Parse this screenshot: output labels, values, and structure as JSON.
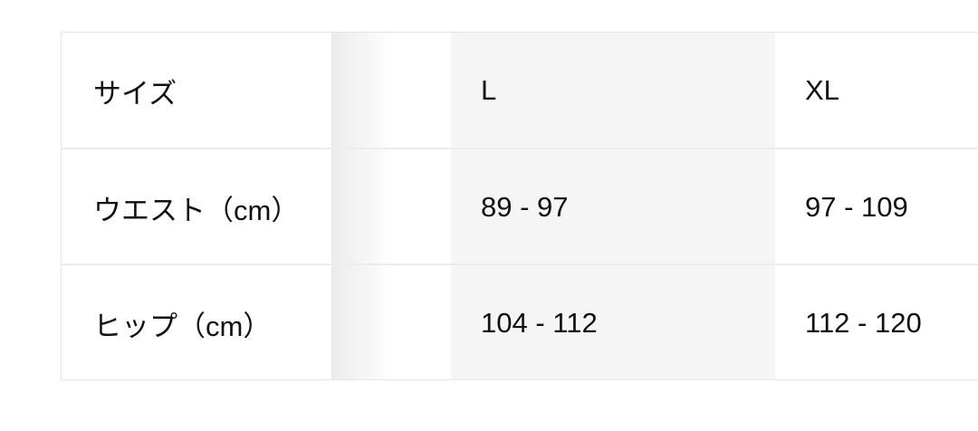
{
  "table": {
    "header": [
      "サイズ",
      "L",
      "XL"
    ],
    "rows": [
      [
        "ウエスト（cm）",
        "89 - 97",
        "97 - 109"
      ],
      [
        "ヒップ（cm）",
        "104 - 112",
        "112 - 120"
      ]
    ]
  },
  "colors": {
    "highlight_column": "#f5f5f5",
    "border": "#e6e6e6"
  }
}
